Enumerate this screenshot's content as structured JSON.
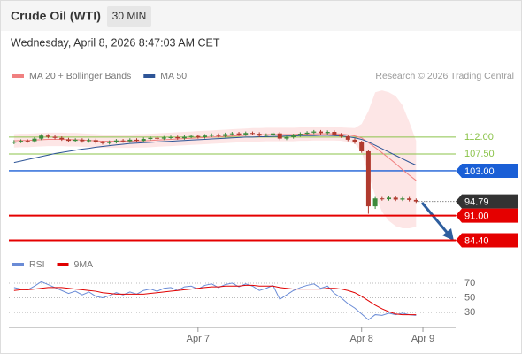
{
  "chart_data": [
    {
      "type": "candlestick",
      "title": "Crude Oil (WTI)",
      "timeframe": "30 MIN",
      "subtitle": "Wednesday, April 8, 2026 8:47:03 AM CET",
      "attribution": "Research © 2026 Trading Central",
      "xlim": [
        -0.5,
        64.8
      ],
      "xticks": [
        {
          "value": 27,
          "label": "Apr 7"
        },
        {
          "value": 51,
          "label": "Apr 8"
        },
        {
          "value": 60,
          "label": "Apr 9"
        }
      ],
      "ylim": [
        82.4,
        125
      ],
      "up_color": "#3d8b3d",
      "down_color": "#b03a2e",
      "open": [
        110.5,
        110.8,
        111.0,
        110.9,
        111.6,
        112.4,
        112.1,
        111.8,
        111.4,
        111.0,
        111.3,
        110.9,
        111.2,
        110.6,
        110.4,
        110.7,
        111.1,
        110.9,
        111.3,
        111.0,
        111.5,
        111.8,
        111.6,
        111.9,
        112.0,
        111.7,
        112.1,
        112.3,
        112.0,
        112.4,
        112.6,
        112.3,
        112.8,
        113.0,
        112.7,
        113.1,
        112.9,
        112.4,
        112.6,
        113.0,
        111.6,
        112.0,
        112.5,
        112.9,
        113.2,
        113.5,
        113.1,
        113.4,
        112.7,
        112.2,
        111.3,
        110.6,
        108.2,
        93.5,
        95.6,
        95.4,
        95.8,
        95.3,
        95.6,
        95.2
      ],
      "high": [
        111.2,
        111.4,
        111.4,
        112.0,
        112.8,
        112.8,
        112.5,
        112.2,
        111.8,
        111.7,
        111.7,
        111.6,
        111.6,
        111.0,
        111.1,
        111.5,
        111.5,
        111.7,
        111.7,
        111.9,
        112.2,
        112.2,
        112.3,
        112.4,
        112.4,
        112.5,
        112.7,
        112.7,
        112.8,
        113.0,
        113.0,
        113.2,
        113.4,
        113.4,
        113.5,
        113.5,
        113.3,
        113.0,
        113.4,
        113.4,
        112.4,
        112.9,
        113.3,
        113.6,
        113.9,
        113.9,
        113.8,
        113.8,
        113.1,
        112.6,
        111.7,
        111.0,
        108.6,
        96.0,
        96.0,
        96.2,
        96.2,
        96.0,
        96.0,
        95.6
      ],
      "low": [
        110.1,
        110.4,
        110.5,
        110.5,
        111.2,
        111.7,
        111.4,
        111.0,
        110.6,
        110.6,
        110.5,
        110.5,
        110.2,
        110.0,
        110.0,
        110.3,
        110.5,
        110.5,
        110.6,
        110.6,
        111.1,
        111.2,
        111.2,
        111.5,
        111.3,
        111.3,
        111.7,
        111.6,
        111.6,
        112.0,
        111.9,
        111.9,
        112.4,
        112.3,
        112.3,
        112.5,
        112.0,
        112.0,
        112.2,
        111.2,
        111.2,
        111.6,
        112.1,
        112.5,
        112.8,
        112.7,
        112.7,
        112.3,
        111.8,
        110.9,
        110.2,
        107.8,
        91.5,
        92.8,
        95.0,
        95.0,
        94.9,
        94.9,
        94.8,
        94.4
      ],
      "close": [
        110.8,
        111.0,
        110.9,
        111.6,
        112.4,
        112.1,
        111.8,
        111.4,
        111.0,
        111.3,
        110.9,
        111.2,
        110.6,
        110.4,
        110.7,
        111.1,
        110.9,
        111.3,
        111.0,
        111.5,
        111.8,
        111.6,
        111.9,
        112.0,
        111.7,
        112.1,
        112.3,
        112.0,
        112.4,
        112.6,
        112.3,
        112.8,
        113.0,
        112.7,
        113.1,
        112.9,
        112.4,
        112.6,
        113.0,
        111.6,
        112.0,
        112.5,
        112.9,
        113.2,
        113.5,
        113.1,
        113.4,
        112.7,
        112.2,
        111.3,
        110.6,
        108.2,
        93.5,
        95.6,
        95.4,
        95.8,
        95.3,
        95.6,
        95.2,
        94.79
      ],
      "series": [
        {
          "name": "MA 20 + Bollinger Bands",
          "color": "#f08080",
          "values": [
            111.0,
            111.1,
            111.1,
            111.2,
            111.3,
            111.4,
            111.4,
            111.4,
            111.3,
            111.3,
            111.2,
            111.1,
            111.0,
            110.9,
            110.9,
            110.9,
            110.9,
            110.9,
            111.0,
            111.0,
            111.1,
            111.2,
            111.3,
            111.4,
            111.5,
            111.6,
            111.7,
            111.8,
            111.9,
            112.0,
            112.1,
            112.2,
            112.3,
            112.4,
            112.5,
            112.6,
            112.6,
            112.7,
            112.7,
            112.7,
            112.7,
            112.7,
            112.8,
            112.8,
            112.9,
            112.9,
            112.9,
            112.9,
            112.8,
            112.6,
            112.3,
            111.8,
            110.5,
            109.2,
            107.8,
            106.4,
            104.9,
            103.3,
            101.8,
            100.4
          ]
        },
        {
          "name": "MA 50",
          "color": "#2e5597",
          "values": [
            105.2,
            105.6,
            106.0,
            106.4,
            106.8,
            107.2,
            107.6,
            107.9,
            108.2,
            108.5,
            108.8,
            109.0,
            109.3,
            109.5,
            109.7,
            109.9,
            110.1,
            110.3,
            110.4,
            110.5,
            110.6,
            110.7,
            110.8,
            110.9,
            111.0,
            111.1,
            111.2,
            111.3,
            111.4,
            111.5,
            111.6,
            111.7,
            111.8,
            111.9,
            112.0,
            112.0,
            112.1,
            112.1,
            112.2,
            112.2,
            112.3,
            112.3,
            112.4,
            112.4,
            112.4,
            112.5,
            112.5,
            112.4,
            112.3,
            112.1,
            111.8,
            111.4,
            110.7,
            109.8,
            108.9,
            108.0,
            107.1,
            106.2,
            105.3,
            104.5
          ]
        }
      ],
      "bands": {
        "color": "#fde2e2",
        "upper": [
          112.8,
          112.9,
          112.9,
          113.0,
          113.1,
          113.2,
          113.2,
          113.2,
          113.1,
          113.1,
          113.0,
          112.9,
          112.8,
          112.7,
          112.7,
          112.7,
          112.7,
          112.7,
          112.8,
          112.8,
          112.9,
          113.0,
          113.1,
          113.2,
          113.3,
          113.4,
          113.5,
          113.6,
          113.7,
          113.8,
          113.9,
          114.0,
          114.1,
          114.2,
          114.3,
          114.4,
          114.4,
          114.5,
          114.5,
          114.5,
          114.5,
          114.5,
          114.6,
          114.6,
          114.7,
          114.7,
          114.7,
          114.7,
          114.6,
          114.5,
          114.4,
          115.5,
          119.0,
          124.0,
          124.5,
          124.0,
          123.0,
          120.5,
          116.0,
          111.0
        ],
        "lower": [
          109.2,
          109.3,
          109.3,
          109.4,
          109.5,
          109.6,
          109.6,
          109.6,
          109.5,
          109.5,
          109.4,
          109.3,
          109.2,
          109.1,
          109.1,
          109.1,
          109.1,
          109.1,
          109.2,
          109.2,
          109.3,
          109.4,
          109.5,
          109.6,
          109.7,
          109.8,
          109.9,
          110.0,
          110.1,
          110.2,
          110.3,
          110.4,
          110.5,
          110.6,
          110.7,
          110.8,
          110.8,
          110.9,
          110.9,
          110.9,
          110.9,
          110.9,
          111.0,
          111.0,
          111.1,
          111.1,
          111.1,
          111.1,
          111.0,
          110.7,
          110.2,
          108.1,
          102.0,
          96.4,
          92.0,
          89.6,
          88.2,
          87.6,
          87.6,
          88.0
        ]
      },
      "levels": [
        {
          "value": 112,
          "label": "112.00",
          "color": "#8bc34a",
          "style": "text",
          "line": "solid"
        },
        {
          "value": 107.5,
          "label": "107.50",
          "color": "#8bc34a",
          "style": "text",
          "line": "solid"
        },
        {
          "value": 103,
          "label": "103.00",
          "color": "#1a5fd6",
          "style": "box",
          "line": "solid"
        },
        {
          "value": 94.79,
          "color": "#333333",
          "style": "box",
          "line": "dotted"
        },
        {
          "value": 91,
          "label": "91.00",
          "color": "#e50000",
          "style": "box",
          "line": "solid"
        },
        {
          "value": 84.4,
          "label": "84.40",
          "color": "#e50000",
          "style": "box",
          "line": "solid"
        }
      ]
    },
    {
      "type": "line",
      "ylim": [
        12,
        82
      ],
      "yticks": [
        30,
        50,
        70
      ],
      "series": [
        {
          "name": "RSI",
          "color": "#6a8bd6",
          "values": [
            64,
            62,
            61,
            66,
            72,
            68,
            64,
            60,
            56,
            59,
            54,
            58,
            52,
            50,
            53,
            57,
            54,
            58,
            55,
            60,
            62,
            59,
            63,
            64,
            60,
            65,
            66,
            62,
            67,
            69,
            64,
            68,
            70,
            65,
            69,
            66,
            60,
            63,
            67,
            48,
            54,
            60,
            64,
            67,
            69,
            63,
            66,
            56,
            50,
            42,
            36,
            28,
            20,
            27,
            26,
            29,
            27,
            29,
            27,
            26
          ]
        },
        {
          "name": "9MA",
          "color": "#e00000",
          "values": [
            60,
            61,
            61,
            62,
            63,
            64,
            64,
            64,
            63,
            62,
            61,
            60,
            59,
            57,
            56,
            55,
            55,
            55,
            55,
            55,
            56,
            57,
            58,
            59,
            60,
            61,
            62,
            63,
            64,
            65,
            65,
            66,
            66,
            66,
            67,
            67,
            66,
            66,
            66,
            64,
            63,
            62,
            62,
            62,
            62,
            62,
            63,
            63,
            62,
            60,
            57,
            52,
            46,
            40,
            35,
            31,
            28,
            27,
            27,
            27
          ]
        }
      ]
    }
  ]
}
